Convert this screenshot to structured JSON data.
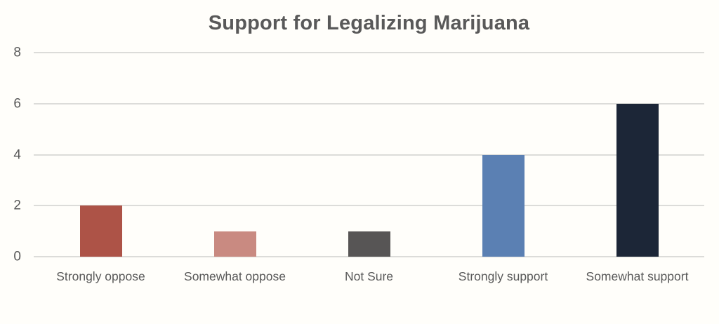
{
  "chart_data": {
    "type": "bar",
    "title": "Support for Legalizing Marijuana",
    "categories": [
      "Strongly oppose",
      "Somewhat oppose",
      "Not Sure",
      "Strongly support",
      "Somewhat support"
    ],
    "values": [
      2,
      1,
      1,
      4,
      6
    ],
    "bar_colors": [
      "#AD5347",
      "#C98A81",
      "#575555",
      "#5B80B3",
      "#1C2637"
    ],
    "xlabel": "",
    "ylabel": "",
    "ylim": [
      0,
      8
    ],
    "yticks": [
      0,
      2,
      4,
      6,
      8
    ],
    "grid": true,
    "legend": false,
    "colors": {
      "background": "#FFFEFA",
      "title_text": "#595959",
      "axis_text": "#595959",
      "gridline": "#DCDCD9"
    }
  }
}
